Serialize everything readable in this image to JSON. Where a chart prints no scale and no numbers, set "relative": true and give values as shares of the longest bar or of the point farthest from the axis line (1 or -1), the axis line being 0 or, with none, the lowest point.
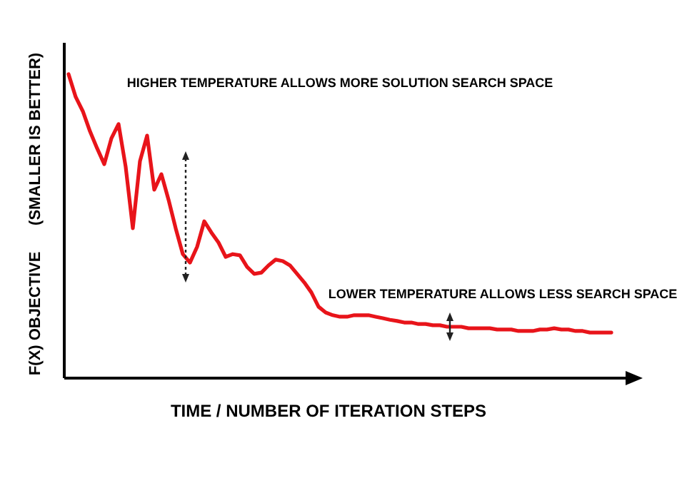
{
  "chart_data": {
    "type": "line",
    "relative": true,
    "xlabel": "TIME / NUMBER OF ITERATION STEPS",
    "ylabel": "F(X) OBJECTIVE      (SMALLER IS BETTER)",
    "annotations": [
      "HIGHER TEMPERATURE ALLOWS MORE SOLUTION SEARCH SPACE",
      "LOWER TEMPERATURE ALLOWS LESS SEARCH SPACE"
    ],
    "color": "#e8141a",
    "categories": [
      null,
      null,
      null,
      null,
      null,
      null,
      null,
      null,
      null,
      null,
      null,
      null,
      null,
      null,
      null,
      null,
      null,
      null,
      null,
      null,
      null,
      null,
      null,
      null,
      null,
      null,
      null,
      null,
      null,
      null,
      null,
      null,
      null,
      null,
      null,
      null,
      null,
      null,
      null,
      null,
      null,
      null,
      null,
      null,
      null,
      null,
      null,
      null,
      null,
      null,
      null,
      null,
      null,
      null,
      null,
      null,
      null,
      null,
      null,
      null,
      null,
      null,
      null,
      null,
      null,
      null,
      null,
      null,
      null,
      null,
      null,
      null,
      null,
      null,
      null,
      null,
      null
    ],
    "values": [
      1.0,
      0.925,
      0.878,
      0.812,
      0.756,
      0.704,
      0.789,
      0.836,
      0.695,
      0.493,
      0.714,
      0.798,
      0.62,
      0.671,
      0.587,
      0.493,
      0.408,
      0.38,
      0.432,
      0.516,
      0.479,
      0.446,
      0.399,
      0.408,
      0.404,
      0.366,
      0.343,
      0.347,
      0.371,
      0.39,
      0.385,
      0.371,
      0.343,
      0.315,
      0.282,
      0.235,
      0.216,
      0.207,
      0.202,
      0.202,
      0.207,
      0.207,
      0.207,
      0.202,
      0.197,
      0.192,
      0.188,
      0.183,
      0.183,
      0.178,
      0.178,
      0.174,
      0.174,
      0.169,
      0.169,
      0.169,
      0.164,
      0.164,
      0.164,
      0.164,
      0.16,
      0.16,
      0.16,
      0.155,
      0.155,
      0.155,
      0.16,
      0.16,
      0.164,
      0.16,
      0.16,
      0.155,
      0.155,
      0.15,
      0.15,
      0.15,
      0.15
    ]
  }
}
